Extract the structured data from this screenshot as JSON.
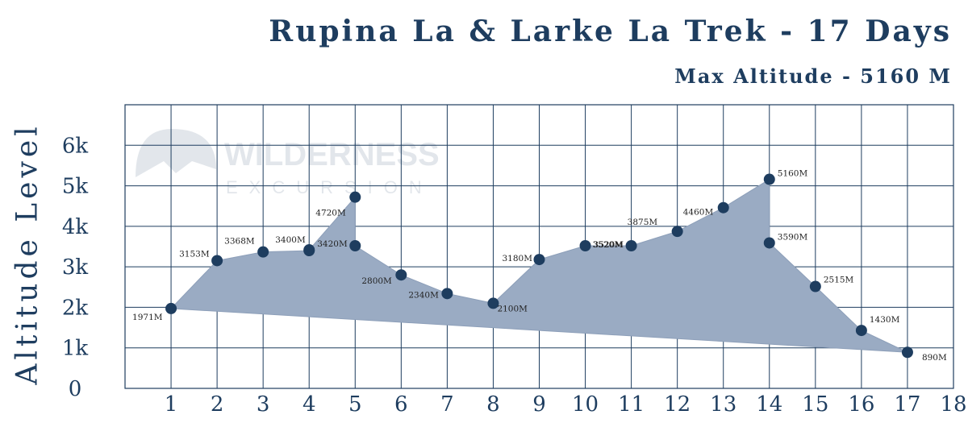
{
  "title": "Rupina La & Larke La Trek - 17 Days",
  "subtitle": "Max Altitude - 5160 M",
  "watermark": {
    "line1": "WILDERNESS",
    "line2": "EXCURSION"
  },
  "colors": {
    "navy": "#1e3d5f",
    "area": "#9aabc3",
    "grid": "#1e3d5f",
    "text": "#222222"
  },
  "chart_data": {
    "type": "area",
    "title": "Rupina La & Larke La Trek - 17 Days",
    "subtitle": "Max Altitude - 5160 M",
    "ylabel": "Altitude Level",
    "xlabel": "",
    "x_ticks": [
      "1",
      "2",
      "3",
      "4",
      "5",
      "6",
      "7",
      "8",
      "9",
      "10",
      "11",
      "12",
      "13",
      "14",
      "15",
      "16",
      "17",
      "18"
    ],
    "y_ticks": [
      "0",
      "1k",
      "2k",
      "3k",
      "4k",
      "5k",
      "6k"
    ],
    "ylim": [
      0,
      7000
    ],
    "xlim": [
      0,
      18
    ],
    "grid": true,
    "points": [
      {
        "x": 1,
        "y": 1971,
        "label": "1971M"
      },
      {
        "x": 2,
        "y": 3153,
        "label": "3153M"
      },
      {
        "x": 3,
        "y": 3368,
        "label": "3368M"
      },
      {
        "x": 4,
        "y": 3400,
        "label": "3400M"
      },
      {
        "x": 4,
        "y": 3420,
        "label": "3420M"
      },
      {
        "x": 5,
        "y": 4720,
        "label": "4720M"
      },
      {
        "x": 5,
        "y": 3520,
        "label": ""
      },
      {
        "x": 6,
        "y": 2800,
        "label": "2800M"
      },
      {
        "x": 7,
        "y": 2340,
        "label": "2340M"
      },
      {
        "x": 8,
        "y": 2100,
        "label": "2100M"
      },
      {
        "x": 9,
        "y": 3180,
        "label": "3180M"
      },
      {
        "x": 10,
        "y": 3520,
        "label": "3520M"
      },
      {
        "x": 11,
        "y": 3520,
        "label": "3520M"
      },
      {
        "x": 12,
        "y": 3875,
        "label": "3875M"
      },
      {
        "x": 13,
        "y": 4460,
        "label": "4460M"
      },
      {
        "x": 14,
        "y": 5160,
        "label": "5160M"
      },
      {
        "x": 14,
        "y": 3590,
        "label": "3590M"
      },
      {
        "x": 15,
        "y": 2515,
        "label": "2515M"
      },
      {
        "x": 16,
        "y": 1430,
        "label": "1430M"
      },
      {
        "x": 17,
        "y": 890,
        "label": "890M"
      }
    ]
  }
}
